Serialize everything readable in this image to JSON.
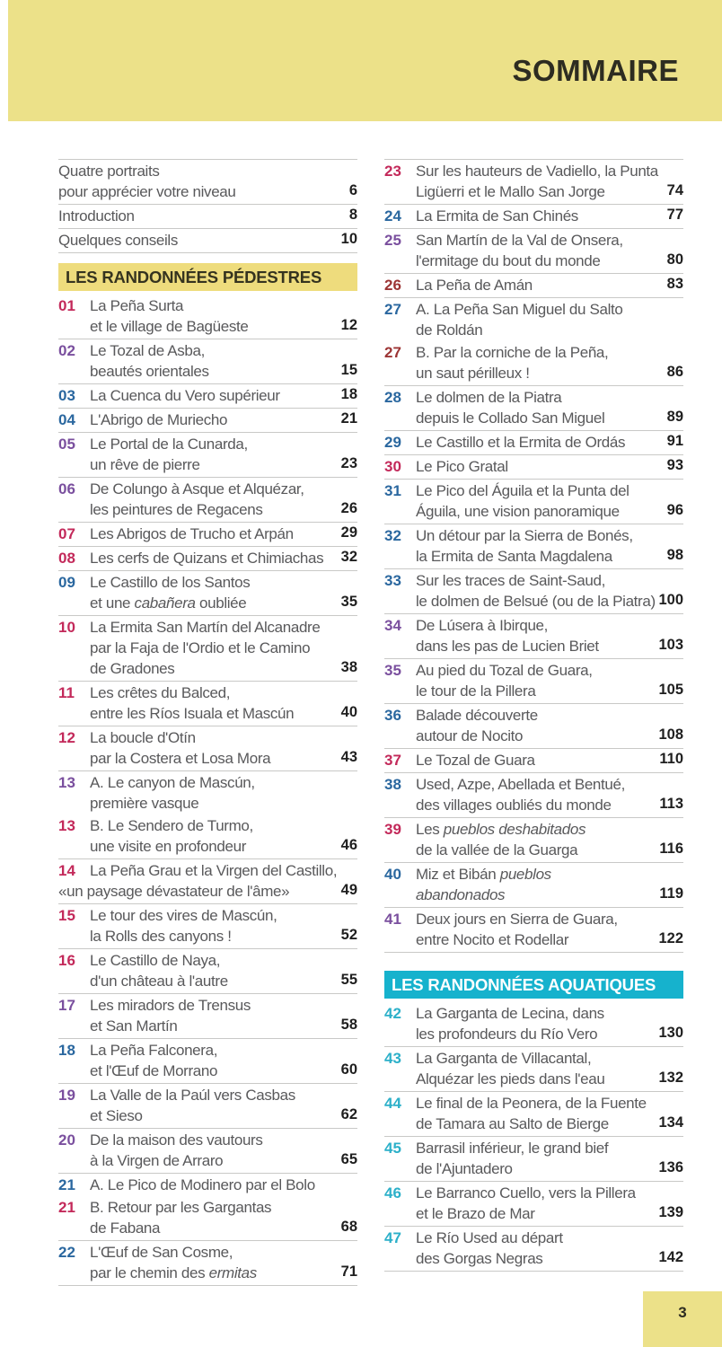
{
  "header": {
    "title": "SOMMAIRE"
  },
  "footer": {
    "page_number": "3"
  },
  "colors": {
    "header_bg": "#ece189",
    "sec_yellow": "#eedc7d",
    "sec_cyan": "#16b2cd",
    "level_red": "#c3295a",
    "level_purple": "#7a4f9e",
    "level_blue": "#2a679f",
    "level_darkred": "#9c3434",
    "level_cyan": "#2cb0c9",
    "title_gray": "#59595b",
    "page_num": "#1f1f1f",
    "separator": "#c9c9c7"
  },
  "columns": [
    {
      "name": "toc-column-left",
      "blocks": [
        {
          "type": "toc",
          "name": "intro-list",
          "top_border": true,
          "rows": [
            {
              "parts": [
                {
                  "lines": [
                    "Quatre portraits",
                    "pour apprécier votre niveau"
                  ]
                }
              ],
              "page": "6"
            },
            {
              "parts": [
                {
                  "lines": [
                    "Introduction"
                  ]
                }
              ],
              "page": "8"
            },
            {
              "parts": [
                {
                  "lines": [
                    "Quelques conseils"
                  ]
                }
              ],
              "page": "10"
            }
          ]
        },
        {
          "type": "section_header",
          "id": "pedestres",
          "style": "yellow",
          "label": "LES RANDONNÉES PÉDESTRES"
        },
        {
          "type": "toc",
          "name": "pedestres-entries-left",
          "top_border": false,
          "rows": [
            {
              "parts": [
                {
                  "num": "01",
                  "level": "red",
                  "lines": [
                    "La Peña Surta",
                    "et le village de Bagüeste"
                  ]
                }
              ],
              "page": "12"
            },
            {
              "parts": [
                {
                  "num": "02",
                  "level": "purple",
                  "lines": [
                    "Le Tozal de Asba,",
                    "beautés orientales"
                  ]
                }
              ],
              "page": "15"
            },
            {
              "parts": [
                {
                  "num": "03",
                  "level": "blue",
                  "lines": [
                    "La Cuenca du Vero supérieur"
                  ]
                }
              ],
              "page": "18"
            },
            {
              "parts": [
                {
                  "num": "04",
                  "level": "blue",
                  "lines": [
                    "L'Abrigo de Muriecho"
                  ]
                }
              ],
              "page": "21"
            },
            {
              "parts": [
                {
                  "num": "05",
                  "level": "purple",
                  "lines": [
                    "Le Portal de la Cunarda,",
                    "un rêve de pierre"
                  ]
                }
              ],
              "page": "23"
            },
            {
              "parts": [
                {
                  "num": "06",
                  "level": "purple",
                  "lines": [
                    "De Colungo à Asque et Alquézar,",
                    "les peintures de Regacens"
                  ]
                }
              ],
              "page": "26"
            },
            {
              "parts": [
                {
                  "num": "07",
                  "level": "red",
                  "lines": [
                    "Les Abrigos de Trucho et Arpán"
                  ]
                }
              ],
              "page": "29"
            },
            {
              "parts": [
                {
                  "num": "08",
                  "level": "red",
                  "lines": [
                    "Les cerfs de Quizans et Chimiachas"
                  ]
                }
              ],
              "page": "32"
            },
            {
              "parts": [
                {
                  "num": "09",
                  "level": "blue",
                  "lines": [
                    "Le Castillo de los Santos",
                    "et une *cabañera* oubliée"
                  ]
                }
              ],
              "page": "35"
            },
            {
              "parts": [
                {
                  "num": "10",
                  "level": "red",
                  "lines": [
                    "La Ermita San Martín del Alcanadre",
                    "par la Faja de l'Ordio et le Camino",
                    "de Gradones"
                  ]
                }
              ],
              "page": "38"
            },
            {
              "parts": [
                {
                  "num": "11",
                  "level": "red",
                  "lines": [
                    "Les crêtes du Balced,",
                    "entre les Ríos Isuala et Mascún"
                  ]
                }
              ],
              "page": "40"
            },
            {
              "parts": [
                {
                  "num": "12",
                  "level": "red",
                  "lines": [
                    "La boucle d'Otín",
                    "par la Costera et Losa Mora"
                  ]
                }
              ],
              "page": "43"
            },
            {
              "parts": [
                {
                  "num": "13",
                  "level": "purple",
                  "lines": [
                    "A. Le canyon de Mascún,",
                    "première vasque"
                  ]
                },
                {
                  "num": "13",
                  "level": "red",
                  "lines": [
                    "B. Le Sendero de Turmo,",
                    "une visite en profondeur"
                  ]
                }
              ],
              "page": "46"
            },
            {
              "parts": [
                {
                  "num": "14",
                  "level": "red",
                  "lines": [
                    "La Peña Grau et la Virgen del Castillo,",
                    "«un paysage dévastateur de l'âme»"
                  ],
                  "outdent": [
                    1
                  ]
                }
              ],
              "page": "49"
            },
            {
              "parts": [
                {
                  "num": "15",
                  "level": "red",
                  "lines": [
                    "Le tour des vires de Mascún,",
                    "la Rolls des canyons !"
                  ]
                }
              ],
              "page": "52"
            },
            {
              "parts": [
                {
                  "num": "16",
                  "level": "red",
                  "lines": [
                    "Le Castillo de Naya,",
                    "d'un château à l'autre"
                  ]
                }
              ],
              "page": "55"
            },
            {
              "parts": [
                {
                  "num": "17",
                  "level": "purple",
                  "lines": [
                    "Les miradors de Trensus",
                    "et San Martín"
                  ]
                }
              ],
              "page": "58"
            },
            {
              "parts": [
                {
                  "num": "18",
                  "level": "blue",
                  "lines": [
                    "La Peña Falconera,",
                    "et l'Œuf de Morrano"
                  ]
                }
              ],
              "page": "60"
            },
            {
              "parts": [
                {
                  "num": "19",
                  "level": "purple",
                  "lines": [
                    "La Valle de la Paúl vers Casbas",
                    "et Sieso"
                  ]
                }
              ],
              "page": "62"
            },
            {
              "parts": [
                {
                  "num": "20",
                  "level": "purple",
                  "lines": [
                    "De la maison des vautours",
                    "à la Virgen de Arraro"
                  ]
                }
              ],
              "page": "65"
            },
            {
              "parts": [
                {
                  "num": "21",
                  "level": "blue",
                  "lines": [
                    "A. Le Pico de Modinero par el Bolo"
                  ]
                },
                {
                  "num": "21",
                  "level": "red",
                  "lines": [
                    "B. Retour par les Gargantas",
                    "de Fabana"
                  ]
                }
              ],
              "page": "68"
            },
            {
              "parts": [
                {
                  "num": "22",
                  "level": "blue",
                  "lines": [
                    "L'Œuf de San Cosme,",
                    "par le chemin des *ermitas*"
                  ]
                }
              ],
              "page": "71"
            }
          ]
        }
      ]
    },
    {
      "name": "toc-column-right",
      "blocks": [
        {
          "type": "toc",
          "name": "pedestres-entries-right",
          "top_border": true,
          "rows": [
            {
              "parts": [
                {
                  "num": "23",
                  "level": "red",
                  "lines": [
                    "Sur les hauteurs de Vadiello, la Punta",
                    "Ligüerri et le Mallo San Jorge"
                  ]
                }
              ],
              "page": "74"
            },
            {
              "parts": [
                {
                  "num": "24",
                  "level": "blue",
                  "lines": [
                    "La Ermita de San Chinés"
                  ]
                }
              ],
              "page": "77"
            },
            {
              "parts": [
                {
                  "num": "25",
                  "level": "purple",
                  "lines": [
                    "San Martín de la Val de Onsera,",
                    "l'ermitage du bout du monde"
                  ]
                }
              ],
              "page": "80"
            },
            {
              "parts": [
                {
                  "num": "26",
                  "level": "darkred",
                  "lines": [
                    "La Peña de Amán"
                  ]
                }
              ],
              "page": "83"
            },
            {
              "parts": [
                {
                  "num": "27",
                  "level": "blue",
                  "lines": [
                    "A. La Peña San Miguel du Salto",
                    "de Roldán"
                  ]
                },
                {
                  "num": "27",
                  "level": "darkred",
                  "lines": [
                    "B. Par la corniche de la Peña,",
                    "un saut périlleux !"
                  ]
                }
              ],
              "page": "86"
            },
            {
              "parts": [
                {
                  "num": "28",
                  "level": "blue",
                  "lines": [
                    "Le dolmen de la Piatra",
                    "depuis le Collado San Miguel"
                  ]
                }
              ],
              "page": "89"
            },
            {
              "parts": [
                {
                  "num": "29",
                  "level": "blue",
                  "lines": [
                    "Le Castillo et la Ermita de Ordás"
                  ]
                }
              ],
              "page": "91"
            },
            {
              "parts": [
                {
                  "num": "30",
                  "level": "red",
                  "lines": [
                    "Le Pico Gratal"
                  ]
                }
              ],
              "page": "93"
            },
            {
              "parts": [
                {
                  "num": "31",
                  "level": "blue",
                  "lines": [
                    "Le Pico del Águila et la Punta del",
                    "Águila, une vision panoramique"
                  ]
                }
              ],
              "page": "96"
            },
            {
              "parts": [
                {
                  "num": "32",
                  "level": "blue",
                  "lines": [
                    "Un détour par la Sierra de Bonés,",
                    "la Ermita de Santa Magdalena"
                  ]
                }
              ],
              "page": "98"
            },
            {
              "parts": [
                {
                  "num": "33",
                  "level": "blue",
                  "lines": [
                    "Sur les traces de Saint-Saud,",
                    "le dolmen de Belsué (ou de la Piatra)"
                  ]
                }
              ],
              "page": "100"
            },
            {
              "parts": [
                {
                  "num": "34",
                  "level": "purple",
                  "lines": [
                    "De Lúsera à Ibirque,",
                    "dans les pas de Lucien Briet"
                  ]
                }
              ],
              "page": "103"
            },
            {
              "parts": [
                {
                  "num": "35",
                  "level": "purple",
                  "lines": [
                    "Au pied du Tozal de Guara,",
                    "le tour de la Pillera"
                  ]
                }
              ],
              "page": "105"
            },
            {
              "parts": [
                {
                  "num": "36",
                  "level": "blue",
                  "lines": [
                    "Balade découverte",
                    "autour de Nocito"
                  ]
                }
              ],
              "page": "108"
            },
            {
              "parts": [
                {
                  "num": "37",
                  "level": "red",
                  "lines": [
                    "Le Tozal de Guara"
                  ]
                }
              ],
              "page": "110"
            },
            {
              "parts": [
                {
                  "num": "38",
                  "level": "blue",
                  "lines": [
                    "Used, Azpe, Abellada et Bentué,",
                    "des villages oubliés du monde"
                  ]
                }
              ],
              "page": "113"
            },
            {
              "parts": [
                {
                  "num": "39",
                  "level": "red",
                  "lines": [
                    "Les *pueblos deshabitados*",
                    "de la vallée de la Guarga"
                  ]
                }
              ],
              "page": "116"
            },
            {
              "parts": [
                {
                  "num": "40",
                  "level": "blue",
                  "lines": [
                    "Miz et Bibán *pueblos*",
                    "*abandonados*"
                  ]
                }
              ],
              "page": "119"
            },
            {
              "parts": [
                {
                  "num": "41",
                  "level": "purple",
                  "lines": [
                    "Deux jours en Sierra de Guara,",
                    "entre Nocito et Rodellar"
                  ]
                }
              ],
              "page": "122"
            }
          ]
        },
        {
          "type": "section_header",
          "id": "aquatiques",
          "style": "cyan",
          "label": "LES RANDONNÉES AQUATIQUES"
        },
        {
          "type": "toc",
          "name": "aquatiques-entries",
          "top_border": false,
          "rows": [
            {
              "parts": [
                {
                  "num": "42",
                  "level": "cyan",
                  "lines": [
                    "La Garganta de Lecina, dans",
                    "les profondeurs du Río Vero"
                  ]
                }
              ],
              "page": "130"
            },
            {
              "parts": [
                {
                  "num": "43",
                  "level": "cyan",
                  "lines": [
                    "La Garganta de Villacantal,",
                    "Alquézar les pieds dans l'eau"
                  ]
                }
              ],
              "page": "132"
            },
            {
              "parts": [
                {
                  "num": "44",
                  "level": "cyan",
                  "lines": [
                    "Le final de la Peonera, de la Fuente",
                    "de Tamara au Salto de Bierge"
                  ]
                }
              ],
              "page": "134"
            },
            {
              "parts": [
                {
                  "num": "45",
                  "level": "cyan",
                  "lines": [
                    "Barrasil inférieur, le grand bief",
                    "de l'Ajuntadero"
                  ]
                }
              ],
              "page": "136"
            },
            {
              "parts": [
                {
                  "num": "46",
                  "level": "cyan",
                  "lines": [
                    "Le Barranco Cuello, vers la Pillera",
                    "et le Brazo de Mar"
                  ]
                }
              ],
              "page": "139"
            },
            {
              "parts": [
                {
                  "num": "47",
                  "level": "cyan",
                  "lines": [
                    "Le Río Used au départ",
                    "des Gorgas Negras"
                  ]
                }
              ],
              "page": "142"
            }
          ]
        }
      ]
    }
  ]
}
